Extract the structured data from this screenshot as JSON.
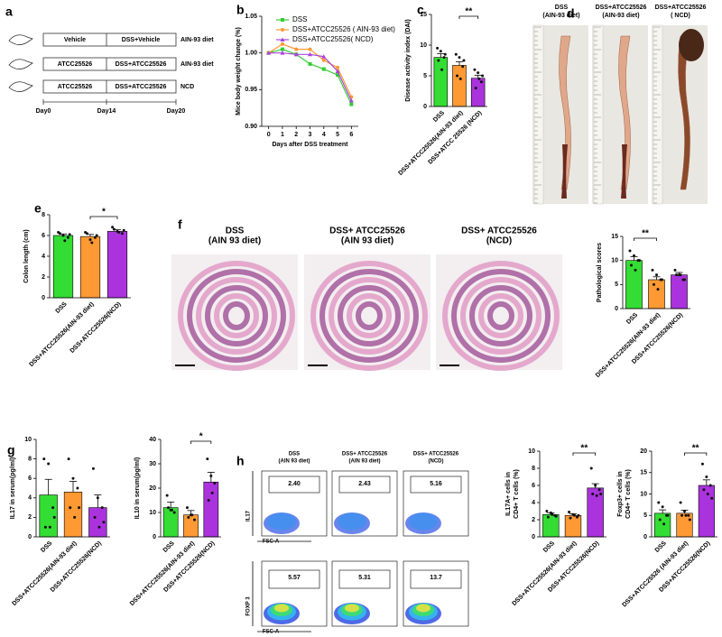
{
  "panel_labels": [
    "a",
    "b",
    "c",
    "d",
    "e",
    "f",
    "g",
    "h"
  ],
  "schematic": {
    "rows": [
      {
        "pre": "Vehicle",
        "post": "DSS+Vehicle",
        "diet": "AIN-93 diet"
      },
      {
        "pre": "ATCC25526",
        "post": "DSS+ATCC25526",
        "diet": "AIN-93 diet"
      },
      {
        "pre": "ATCC25526",
        "post": "DSS+ATCC25526",
        "diet": "NCD"
      }
    ],
    "days": [
      "Day0",
      "Day14",
      "Day20"
    ]
  },
  "photos": {
    "labels": [
      [
        "DSS",
        "(AIN-93 diet)"
      ],
      [
        "DSS+ATCC25526",
        "(AIN-93 diet)"
      ],
      [
        "DSS+ATCC25526",
        "( NCD)"
      ]
    ]
  },
  "histology": {
    "titles": [
      [
        "DSS",
        "(AIN 93 diet)"
      ],
      [
        "DSS+ ATCC25526",
        "(AIN 93 diet)"
      ],
      [
        "DSS+ ATCC25526",
        "(NCD)"
      ]
    ]
  },
  "flow": {
    "titles": [
      [
        "DSS",
        "(AIN 93 diet)"
      ],
      [
        "DSS+ ATCC25526",
        "(AIN 93 diet)"
      ],
      [
        "DSS+ ATCC25526",
        "(NCD)"
      ]
    ],
    "gates": [
      [
        "2.40",
        "2.43",
        "5.16"
      ],
      [
        "5.57",
        "5.31",
        "13.7"
      ]
    ],
    "y_labels": [
      "IL17",
      "FOXP 3"
    ],
    "x_label": "FSC-A"
  },
  "chart_data": [
    {
      "type": "line",
      "xlabel": "Days after DSS treatment",
      "ylabel": "Mice body weight change (%)",
      "x": [
        0,
        1,
        2,
        3,
        4,
        5,
        6
      ],
      "xlim": [
        -0.5,
        6.5
      ],
      "xticks": [
        0,
        1,
        2,
        3,
        4,
        5,
        6
      ],
      "ylim": [
        0.9,
        1.05
      ],
      "yticks": [
        {
          "value": 0.9,
          "label": "0.90"
        },
        {
          "value": 0.95,
          "label": "0.95"
        },
        {
          "value": 1,
          "label": "1.00"
        },
        {
          "value": 1.05,
          "label": "1.05"
        }
      ],
      "series": [
        {
          "name": "DSS",
          "color": "#33cc33",
          "marker": "square",
          "values": [
            1.0,
            1.005,
            0.998,
            0.985,
            0.978,
            0.97,
            0.93
          ]
        },
        {
          "name": "DSS+ATCC25526 ( AIN-93 diet)",
          "color": "#ff9933",
          "marker": "circle",
          "values": [
            1.0,
            1.012,
            1.005,
            1.005,
            0.99,
            0.98,
            0.94
          ]
        },
        {
          "name": "DSS+ATCC25526( NCD)",
          "color": "#aa44dd",
          "marker": "triangle",
          "values": [
            1.0,
            1.0,
            0.998,
            0.998,
            0.995,
            0.975,
            0.935
          ]
        }
      ]
    },
    {
      "type": "bar",
      "ylabel": "Disease activity index (DAI)",
      "categories": [
        "DSS",
        "DSS+ATCC25526(AIN-93 diet)",
        "DSS+ATCC 25526 (NCD)"
      ],
      "values": [
        8,
        6.7,
        4.6
      ],
      "errors": [
        0.6,
        0.6,
        0.5
      ],
      "points": [
        [
          9.5,
          9,
          8,
          7.5,
          6,
          8.5
        ],
        [
          8.5,
          8,
          6.5,
          5,
          4.5,
          7.5
        ],
        [
          6,
          5.5,
          4,
          3,
          4.5,
          5
        ]
      ],
      "colors": [
        "#33dd33",
        "#ff9933",
        "#aa33dd"
      ],
      "ylim": [
        0,
        15
      ],
      "yticks": [
        0,
        5,
        10,
        15
      ],
      "significance": "**"
    },
    {
      "type": "bar",
      "ylabel": "Colon length (cm)",
      "categories": [
        "DSS",
        "DSS+ATCC25526(AIN-93 diet)",
        "DSS+ATCC25526(NCD)"
      ],
      "values": [
        6,
        5.9,
        6.4
      ],
      "errors": [
        0.15,
        0.2,
        0.15
      ],
      "points": [
        [
          6.3,
          6,
          5.8,
          6.2,
          5.5,
          6.1
        ],
        [
          6.3,
          5.6,
          5.8,
          6.2,
          5.3,
          6
        ],
        [
          6.8,
          6.4,
          6.2,
          6.6,
          6.3,
          6.5
        ]
      ],
      "colors": [
        "#33dd33",
        "#ff9933",
        "#aa33dd"
      ],
      "ylim": [
        0,
        8
      ],
      "yticks": [
        0,
        2,
        4,
        6,
        8
      ],
      "significance": "*"
    },
    {
      "type": "bar",
      "ylabel": "Pathological scores",
      "categories": [
        "DSS",
        "DSS+ATCC25526(AIN-93 diet)",
        "DSS+ATCC25526(NCD)"
      ],
      "values": [
        10,
        6,
        7
      ],
      "errors": [
        0.8,
        0.6,
        0.5
      ],
      "points": [
        [
          12,
          11,
          10,
          9,
          8,
          10
        ],
        [
          8,
          7,
          6,
          5,
          4,
          6
        ],
        [
          8,
          7,
          6,
          7,
          7,
          6
        ]
      ],
      "colors": [
        "#33dd33",
        "#ff9933",
        "#aa33dd"
      ],
      "ylim": [
        0,
        15
      ],
      "yticks": [
        0,
        5,
        10,
        15
      ],
      "significance": "**"
    },
    {
      "type": "bar",
      "ylabel": "IL17 in serum(pg/ml)",
      "categories": [
        "DSS",
        "DSS+ATCC25526(AIN-93 diet)",
        "DSS+ATCC25526(NCD)"
      ],
      "values": [
        4.3,
        4.6,
        3.0
      ],
      "errors": [
        1.6,
        1.1,
        1.3
      ],
      "points": [
        [
          8,
          7.5,
          3,
          1,
          1,
          2
        ],
        [
          8,
          6,
          5,
          3,
          2,
          3
        ],
        [
          7,
          4,
          3,
          2,
          1,
          1.5
        ]
      ],
      "colors": [
        "#33dd33",
        "#ff9933",
        "#aa33dd"
      ],
      "ylim": [
        0,
        10
      ],
      "yticks": [
        0,
        2,
        4,
        6,
        8,
        10
      ]
    },
    {
      "type": "bar",
      "ylabel": "IL10 in serum(pg/ml)",
      "categories": [
        "DSS",
        "DSS+ATCC25526(AIN-93 diet)",
        "DSS+ATCC25526(NCD)"
      ],
      "values": [
        12,
        9,
        22.5
      ],
      "errors": [
        2.3,
        1.8,
        4
      ],
      "points": [
        [
          17,
          11,
          10,
          12,
          11
        ],
        [
          12,
          9,
          7,
          8,
          9
        ],
        [
          32,
          25,
          22,
          15,
          18
        ]
      ],
      "colors": [
        "#33dd33",
        "#ff9933",
        "#aa33dd"
      ],
      "ylim": [
        0,
        40
      ],
      "yticks": [
        0,
        10,
        20,
        30,
        40
      ],
      "significance": "*"
    },
    {
      "type": "bar",
      "ylabel": [
        "IL17A+ cells in",
        "CD4+ T cells (%)"
      ],
      "categories": [
        "DSS",
        "DSS+ATCC25526(AIN-93 diet)",
        "DSS+ATCC25526(NCD)"
      ],
      "values": [
        2.6,
        2.5,
        5.7
      ],
      "errors": [
        0.2,
        0.2,
        0.5
      ],
      "points": [
        [
          3,
          2.8,
          2.5,
          2.3,
          2.6,
          2.4
        ],
        [
          2.9,
          2.6,
          2.3,
          2.2,
          2.5,
          2.5
        ],
        [
          8,
          6,
          5.5,
          5,
          4.8,
          5
        ]
      ],
      "colors": [
        "#33dd33",
        "#ff9933",
        "#aa33dd"
      ],
      "ylim": [
        0,
        10
      ],
      "yticks": [
        0,
        2,
        4,
        6,
        8,
        10
      ],
      "significance": "**"
    },
    {
      "type": "bar",
      "ylabel": [
        "Foxp3+ cells in",
        "CD4+ T cells (%)"
      ],
      "categories": [
        "DSS",
        "DSS+ATCC25526 (AIN-93 diet)",
        "DSS+ATCC25526(NCD)"
      ],
      "values": [
        5.5,
        5.5,
        12
      ],
      "errors": [
        0.8,
        0.7,
        1.3
      ],
      "points": [
        [
          8,
          7,
          5,
          4,
          3,
          5
        ],
        [
          8,
          6,
          5,
          5,
          5,
          4
        ],
        [
          17,
          14,
          12,
          11,
          10,
          9
        ]
      ],
      "colors": [
        "#33dd33",
        "#ff9933",
        "#aa33dd"
      ],
      "ylim": [
        0,
        20
      ],
      "yticks": [
        0,
        5,
        10,
        15,
        20
      ],
      "significance": "**"
    }
  ]
}
